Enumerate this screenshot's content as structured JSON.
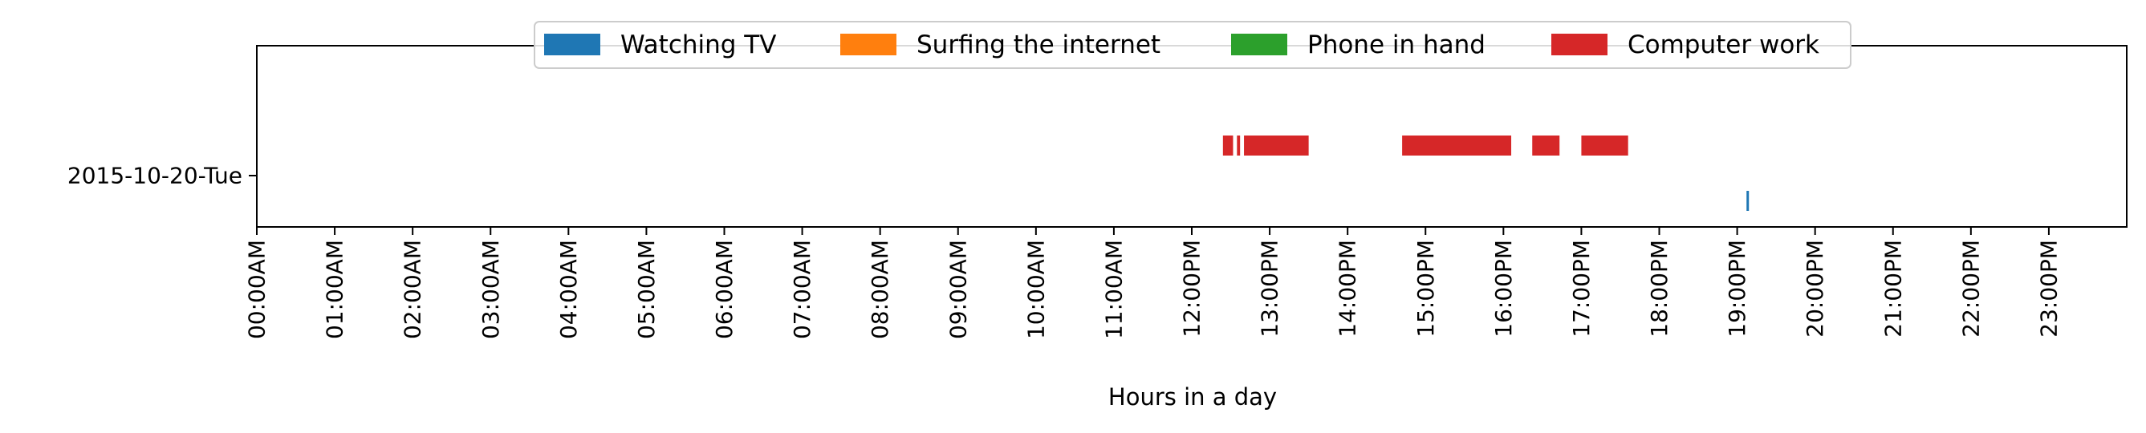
{
  "chart_data": {
    "type": "timeline",
    "xlabel": "Hours in a day",
    "xlim": [
      0,
      24
    ],
    "x_ticks": [
      {
        "value": 0,
        "label": "00:00AM"
      },
      {
        "value": 1,
        "label": "01:00AM"
      },
      {
        "value": 2,
        "label": "02:00AM"
      },
      {
        "value": 3,
        "label": "03:00AM"
      },
      {
        "value": 4,
        "label": "04:00AM"
      },
      {
        "value": 5,
        "label": "05:00AM"
      },
      {
        "value": 6,
        "label": "06:00AM"
      },
      {
        "value": 7,
        "label": "07:00AM"
      },
      {
        "value": 8,
        "label": "08:00AM"
      },
      {
        "value": 9,
        "label": "09:00AM"
      },
      {
        "value": 10,
        "label": "10:00AM"
      },
      {
        "value": 11,
        "label": "11:00AM"
      },
      {
        "value": 12,
        "label": "12:00PM"
      },
      {
        "value": 13,
        "label": "13:00PM"
      },
      {
        "value": 14,
        "label": "14:00PM"
      },
      {
        "value": 15,
        "label": "15:00PM"
      },
      {
        "value": 16,
        "label": "16:00PM"
      },
      {
        "value": 17,
        "label": "17:00PM"
      },
      {
        "value": 18,
        "label": "18:00PM"
      },
      {
        "value": 19,
        "label": "19:00PM"
      },
      {
        "value": 20,
        "label": "20:00PM"
      },
      {
        "value": 21,
        "label": "21:00PM"
      },
      {
        "value": 22,
        "label": "22:00PM"
      },
      {
        "value": 23,
        "label": "23:00PM"
      }
    ],
    "rows": [
      "2015-10-20-Tue"
    ],
    "legend_position": "upper-center",
    "series": [
      {
        "name": "Watching TV",
        "color": "#1f77b4",
        "lane": 3,
        "intervals": [
          [
            19.12,
            19.15
          ]
        ]
      },
      {
        "name": "Surfing the internet",
        "color": "#ff7f0e",
        "lane": 2,
        "intervals": []
      },
      {
        "name": "Phone in hand",
        "color": "#2ca02c",
        "lane": 1,
        "intervals": []
      },
      {
        "name": "Computer work",
        "color": "#d62728",
        "lane": 0,
        "intervals": [
          [
            12.4,
            12.53
          ],
          [
            12.58,
            12.62
          ],
          [
            12.67,
            13.5
          ],
          [
            14.7,
            16.1
          ],
          [
            16.37,
            16.72
          ],
          [
            17.0,
            17.6
          ]
        ]
      }
    ]
  }
}
